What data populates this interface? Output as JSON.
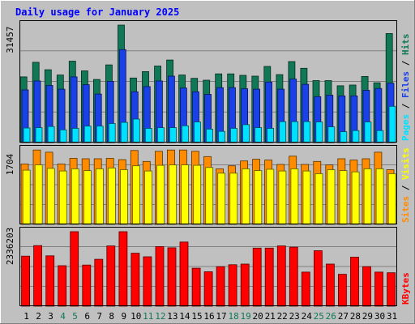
{
  "title": "Daily usage for January 2025",
  "chart_data": [
    {
      "type": "bar",
      "panel": "pages-files-hits",
      "y_max_label": "31457",
      "ylim": [
        0,
        31457
      ],
      "right_labels": [
        "Pages",
        "Files",
        "Hits"
      ],
      "categories": [
        "1",
        "2",
        "3",
        "4",
        "5",
        "6",
        "7",
        "8",
        "9",
        "10",
        "11",
        "12",
        "13",
        "14",
        "15",
        "16",
        "17",
        "18",
        "19",
        "20",
        "21",
        "22",
        "23",
        "24",
        "25",
        "26",
        "27",
        "28",
        "29",
        "30",
        "31"
      ],
      "weekend_days": [
        "4",
        "5",
        "11",
        "12",
        "18",
        "19",
        "25",
        "26"
      ],
      "series": [
        {
          "name": "Hits",
          "color": "#107857",
          "values": [
            17600,
            21500,
            19500,
            18100,
            21800,
            19200,
            16900,
            20800,
            31457,
            17300,
            19000,
            20500,
            22100,
            18100,
            17200,
            16700,
            18400,
            18400,
            18000,
            17800,
            20400,
            18200,
            21700,
            19900,
            16600,
            16600,
            15200,
            15400,
            17700,
            16000,
            29200
          ]
        },
        {
          "name": "Files",
          "color": "#1a40e8",
          "values": [
            14100,
            16500,
            15300,
            14300,
            17600,
            15500,
            13000,
            16400,
            24900,
            13600,
            15000,
            16500,
            17800,
            14600,
            13600,
            12900,
            14700,
            14700,
            14400,
            14300,
            16200,
            14300,
            17000,
            15600,
            12300,
            12700,
            12500,
            12500,
            14000,
            14500,
            15900
          ]
        },
        {
          "name": "Pages",
          "color": "#00e0ff",
          "values": [
            3900,
            4000,
            4300,
            3400,
            3800,
            4400,
            4400,
            5100,
            5400,
            6300,
            3800,
            4000,
            4000,
            4500,
            5500,
            3600,
            3000,
            3800,
            4800,
            4000,
            3800,
            5600,
            5600,
            5600,
            5500,
            4200,
            2900,
            3200,
            5500,
            3200,
            9700
          ]
        }
      ]
    },
    {
      "type": "bar",
      "panel": "visits-sites",
      "y_max_label": "1704",
      "ylim": [
        0,
        1704
      ],
      "right_labels": [
        "Sites",
        "Visits"
      ],
      "categories": [
        "1",
        "2",
        "3",
        "4",
        "5",
        "6",
        "7",
        "8",
        "9",
        "10",
        "11",
        "12",
        "13",
        "14",
        "15",
        "16",
        "17",
        "18",
        "19",
        "20",
        "21",
        "22",
        "23",
        "24",
        "25",
        "26",
        "27",
        "28",
        "29",
        "30",
        "31"
      ],
      "series": [
        {
          "name": "Visits",
          "color": "#ff8c00",
          "values": [
            1380,
            1700,
            1650,
            1380,
            1510,
            1500,
            1500,
            1510,
            1480,
            1690,
            1440,
            1670,
            1700,
            1700,
            1670,
            1550,
            1270,
            1340,
            1450,
            1490,
            1470,
            1370,
            1560,
            1370,
            1440,
            1360,
            1500,
            1470,
            1500,
            1650,
            1250
          ]
        },
        {
          "name": "Sites",
          "color": "#ffff00",
          "values": [
            1240,
            1360,
            1280,
            1220,
            1270,
            1230,
            1270,
            1290,
            1250,
            1340,
            1220,
            1350,
            1360,
            1360,
            1350,
            1300,
            1170,
            1170,
            1270,
            1230,
            1260,
            1220,
            1270,
            1220,
            1160,
            1250,
            1230,
            1200,
            1270,
            1270,
            1160
          ]
        }
      ]
    },
    {
      "type": "bar",
      "panel": "kbytes",
      "y_max_label": "2336203",
      "ylim": [
        0,
        2336203
      ],
      "right_labels": [
        "KBytes"
      ],
      "categories": [
        "1",
        "2",
        "3",
        "4",
        "5",
        "6",
        "7",
        "8",
        "9",
        "10",
        "11",
        "12",
        "13",
        "14",
        "15",
        "16",
        "17",
        "18",
        "19",
        "20",
        "21",
        "22",
        "23",
        "24",
        "25",
        "26",
        "27",
        "28",
        "29",
        "30",
        "31"
      ],
      "series": [
        {
          "name": "KBytes",
          "color": "#ff0000",
          "values": [
            1570000,
            1900000,
            1580000,
            1270000,
            2336203,
            1290000,
            1470000,
            1890000,
            2336203,
            1660000,
            1550000,
            1870000,
            1830000,
            2010000,
            1190000,
            1080000,
            1240000,
            1300000,
            1320000,
            1820000,
            1820000,
            1890000,
            1850000,
            1070000,
            1740000,
            1320000,
            1000000,
            1540000,
            1240000,
            1070000,
            1050000
          ]
        }
      ]
    }
  ]
}
